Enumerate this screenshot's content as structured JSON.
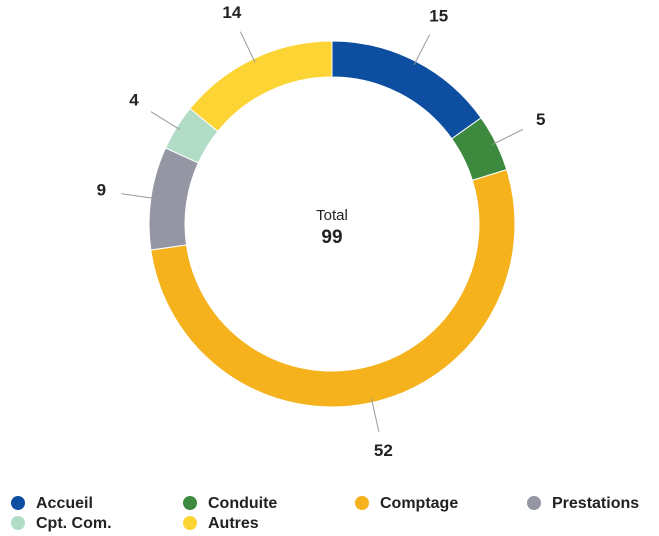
{
  "chart_data": {
    "type": "donut",
    "categories": [
      "Accueil",
      "Conduite",
      "Comptage",
      "Prestations",
      "Cpt. Com.",
      "Autres"
    ],
    "values": [
      15,
      5,
      52,
      9,
      4,
      14
    ],
    "colors": [
      "#0d4ea0",
      "#3d8a3f",
      "#f5b21c",
      "#9497a3",
      "#b1dcc6",
      "#fcd535"
    ],
    "center_label": "Total",
    "total": 99
  }
}
